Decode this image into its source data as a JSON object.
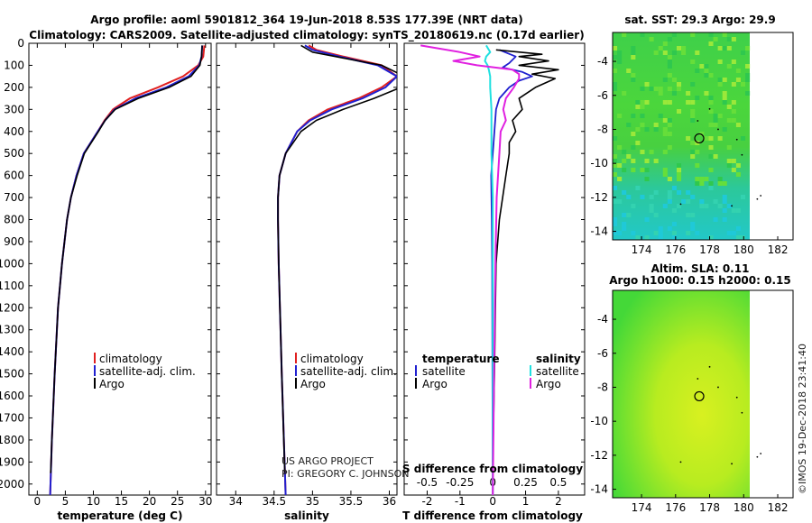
{
  "header": {
    "title_line1": "Argo profile: aoml 5901812_364 19-Jun-2018 8.53S 177.39E (NRT data)",
    "title_line2": "Climatology: CARS2009. Satellite-adjusted climatology: synTS_20180619.nc (0.17d earlier)"
  },
  "colors": {
    "climatology": "#e02020",
    "satellite_adj": "#2020d0",
    "argo": "#000000",
    "satellite": "#20e0e0",
    "argo_salinity_diff": "#e020e0",
    "sst_low": "#20d0c0",
    "sst_high": "#d8f020"
  },
  "chart_data": [
    {
      "type": "line",
      "name": "temperature-profile",
      "xlabel": "temperature (deg C)",
      "xlim": [
        -1.5,
        31
      ],
      "xticks": [
        0,
        5,
        10,
        15,
        20,
        25,
        30
      ],
      "ylim": [
        2050,
        0
      ],
      "yticks": [
        0,
        100,
        200,
        300,
        400,
        500,
        600,
        700,
        800,
        900,
        1000,
        1100,
        1200,
        1300,
        1400,
        1500,
        1600,
        1700,
        1800,
        1900,
        2000
      ],
      "legend": [
        "climatology",
        "satellite-adj. clim.",
        "Argo"
      ],
      "series": [
        {
          "name": "climatology",
          "depth": [
            10,
            60,
            100,
            150,
            200,
            250,
            300,
            350,
            400,
            500,
            600,
            700,
            800,
            1000,
            1200,
            1500,
            1800,
            2050
          ],
          "values": [
            29.8,
            29.6,
            28.7,
            26.0,
            21.5,
            16.5,
            13.5,
            12.0,
            10.8,
            8.3,
            7.0,
            6.0,
            5.3,
            4.4,
            3.7,
            3.1,
            2.6,
            2.3
          ]
        },
        {
          "name": "satellite-adj. clim.",
          "depth": [
            10,
            60,
            100,
            150,
            200,
            250,
            300,
            350,
            400,
            500,
            600,
            700,
            800,
            1000,
            1200,
            1500,
            1800,
            2050
          ],
          "values": [
            29.4,
            29.3,
            28.9,
            27.0,
            23.0,
            17.5,
            13.8,
            12.1,
            10.8,
            8.3,
            7.0,
            6.0,
            5.3,
            4.4,
            3.7,
            3.1,
            2.6,
            2.3
          ]
        },
        {
          "name": "Argo",
          "depth": [
            10,
            60,
            100,
            150,
            200,
            250,
            300,
            350,
            400,
            500,
            600,
            700,
            800,
            1000,
            1200,
            1500,
            1800,
            1950
          ],
          "values": [
            29.4,
            29.3,
            29.0,
            27.4,
            23.5,
            18.0,
            13.9,
            12.1,
            10.9,
            8.4,
            7.1,
            6.0,
            5.3,
            4.4,
            3.7,
            3.1,
            2.6,
            2.4
          ]
        }
      ]
    },
    {
      "type": "line",
      "name": "salinity-profile",
      "xlabel": "salinity",
      "xlim": [
        33.75,
        36.1
      ],
      "xticks": [
        34,
        34.5,
        35,
        35.5,
        36
      ],
      "xtick_labels": [
        "34",
        "34.5",
        "35",
        "35.5",
        "36"
      ],
      "ylim": [
        2050,
        0
      ],
      "legend": [
        "climatology",
        "satellite-adj. clim.",
        "Argo"
      ],
      "annotation": [
        "US ARGO PROJECT",
        "PI: GREGORY C. JOHNSON"
      ],
      "series": [
        {
          "name": "climatology",
          "depth": [
            10,
            30,
            60,
            100,
            150,
            200,
            250,
            300,
            350,
            400,
            500,
            600,
            700,
            800,
            1000,
            1500,
            2050
          ],
          "values": [
            34.95,
            35.05,
            35.4,
            35.9,
            36.1,
            35.9,
            35.6,
            35.2,
            34.95,
            34.8,
            34.65,
            34.57,
            34.55,
            34.55,
            34.56,
            34.6,
            34.65
          ]
        },
        {
          "name": "satellite-adj. clim.",
          "depth": [
            10,
            30,
            60,
            100,
            150,
            200,
            250,
            300,
            350,
            400,
            500,
            600,
            700,
            800,
            1000,
            1500,
            2050
          ],
          "values": [
            34.9,
            35.0,
            35.35,
            35.85,
            36.1,
            35.95,
            35.65,
            35.25,
            34.97,
            34.8,
            34.65,
            34.57,
            34.55,
            34.55,
            34.56,
            34.6,
            34.65
          ]
        },
        {
          "name": "Argo",
          "depth": [
            10,
            40,
            60,
            80,
            100,
            150,
            200,
            250,
            300,
            350,
            400,
            500,
            600,
            700,
            800,
            1000,
            1500,
            1950
          ],
          "values": [
            34.85,
            35.0,
            35.3,
            35.6,
            35.9,
            36.2,
            36.15,
            35.8,
            35.4,
            35.05,
            34.85,
            34.65,
            34.57,
            34.55,
            34.55,
            34.56,
            34.6,
            34.64
          ]
        }
      ]
    },
    {
      "type": "line",
      "name": "difference-profile",
      "xlabel": "T difference from climatology",
      "xlabel_top": "S difference from climatology",
      "xlim": [
        -2.7,
        2.8
      ],
      "xticks": [
        -2,
        -1,
        0,
        1,
        2
      ],
      "s_xtick_labels": [
        "-0.5",
        "-0.25",
        "0",
        "0.25",
        "0.5"
      ],
      "ylim": [
        2050,
        0
      ],
      "legend_temperature": [
        "temperature",
        "satellite",
        "Argo"
      ],
      "legend_salinity": [
        "salinity",
        "satellite",
        "Argo"
      ],
      "series": [
        {
          "name": "temperature satellite",
          "depth": [
            30,
            60,
            90,
            110,
            130,
            150,
            170,
            200,
            250,
            300,
            400,
            500,
            600,
            800,
            1000,
            1500,
            2050
          ],
          "values": [
            0.2,
            0.7,
            0.5,
            0.3,
            0.9,
            1.2,
            0.8,
            0.5,
            0.2,
            0.1,
            0.05,
            0.0,
            -0.05,
            -0.03,
            -0.02,
            -0.01,
            0.0
          ]
        },
        {
          "name": "temperature Argo",
          "depth": [
            30,
            50,
            60,
            80,
            100,
            120,
            140,
            160,
            200,
            250,
            300,
            350,
            400,
            450,
            500,
            600,
            700,
            800,
            1000,
            1500,
            1900
          ],
          "values": [
            0.1,
            1.5,
            0.8,
            1.7,
            0.8,
            2.0,
            1.2,
            1.9,
            1.3,
            0.8,
            0.9,
            0.6,
            0.7,
            0.5,
            0.5,
            0.4,
            0.3,
            0.2,
            0.1,
            0.05,
            0.0
          ]
        },
        {
          "name": "salinity satellite",
          "depth": [
            10,
            40,
            60,
            80,
            100,
            120,
            150,
            200,
            300,
            400,
            500,
            700,
            900,
            1200,
            1500,
            2050
          ],
          "values": [
            -0.05,
            -0.02,
            -0.05,
            -0.06,
            -0.04,
            -0.03,
            -0.02,
            -0.02,
            -0.01,
            -0.01,
            -0.01,
            0.0,
            0.0,
            0.0,
            0.0,
            0.0
          ]
        },
        {
          "name": "salinity Argo",
          "depth": [
            10,
            40,
            60,
            80,
            100,
            120,
            140,
            160,
            200,
            250,
            300,
            350,
            400,
            500,
            700,
            1000,
            1500,
            2050
          ],
          "values": [
            -0.55,
            -0.25,
            -0.1,
            -0.3,
            -0.12,
            0.15,
            0.2,
            0.2,
            0.16,
            0.1,
            0.08,
            0.1,
            0.06,
            0.05,
            0.03,
            0.02,
            0.01,
            0.0
          ]
        }
      ]
    },
    {
      "type": "heatmap",
      "name": "sst-map",
      "title": "sat. SST: 29.3 Argo: 29.9",
      "xlim": [
        172.3,
        182.9
      ],
      "ylim": [
        -14.5,
        -2.3
      ],
      "xticks": [
        174,
        176,
        178,
        180,
        182
      ],
      "yticks": [
        -4,
        -6,
        -8,
        -10,
        -12,
        -14
      ],
      "data_extent_lon": [
        172.3,
        180
      ],
      "profile_location": {
        "lon": 177.39,
        "lat": -8.53
      }
    },
    {
      "type": "heatmap",
      "name": "sla-map",
      "title_line1": "Altim. SLA: 0.11",
      "title_line2": "Argo h1000: 0.15 h2000: 0.15",
      "xlim": [
        172.3,
        182.9
      ],
      "ylim": [
        -14.5,
        -2.3
      ],
      "xticks": [
        174,
        176,
        178,
        180,
        182
      ],
      "yticks": [
        -4,
        -6,
        -8,
        -10,
        -12,
        -14
      ],
      "data_extent_lon": [
        172.3,
        180
      ],
      "profile_location": {
        "lon": 177.39,
        "lat": -8.53
      }
    }
  ],
  "footer": {
    "credit": "©IMOS 19-Dec-2018 23:41:40"
  }
}
